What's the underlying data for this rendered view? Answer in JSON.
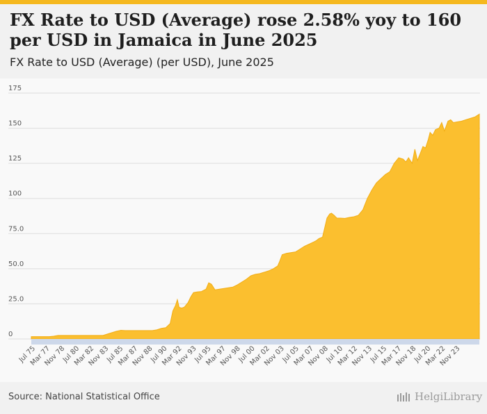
{
  "header": {
    "title": "FX Rate to USD (Average) rose 2.58% yoy to 160 per USD in Jamaica in June 2025",
    "subtitle": "FX Rate to USD (Average) (per USD), June 2025"
  },
  "footer": {
    "source": "Source: National Statistical Office",
    "brand": "HelgiLibrary"
  },
  "colors": {
    "accent": "#f5b81f",
    "area": "#fbbf2f",
    "grid": "#dddddd",
    "axis_text": "#555555"
  },
  "chart_data": {
    "type": "area",
    "title": "FX Rate to USD (Average) (per USD), June 2025",
    "xlabel": "",
    "ylabel": "",
    "ylim": [
      0,
      175
    ],
    "yticks": [
      0,
      25.0,
      50.0,
      75.0,
      100,
      125,
      150,
      175
    ],
    "ytick_labels": [
      "0",
      "25.0",
      "50.0",
      "75.0",
      "100",
      "125",
      "150",
      "175"
    ],
    "xrange": [
      1975.5,
      2025.5
    ],
    "xtick_labels": [
      "Jul 75",
      "Mar 77",
      "Nov 78",
      "Jul 80",
      "Mar 82",
      "Nov 83",
      "Jul 85",
      "Mar 87",
      "Nov 88",
      "Jul 90",
      "Mar 92",
      "Nov 93",
      "Jul 95",
      "Mar 97",
      "Nov 98",
      "Jul 00",
      "Mar 02",
      "Nov 03",
      "Jul 05",
      "Mar 07",
      "Nov 08",
      "Jul 10",
      "Mar 12",
      "Nov 13",
      "Jul 15",
      "Mar 17",
      "Nov 18",
      "Jul 20",
      "Mar 22",
      "Nov 23"
    ],
    "series": [
      {
        "name": "FX Rate to USD (Average)",
        "x": [
          1975.5,
          1977.5,
          1978.0,
          1978.5,
          1983.5,
          1984.0,
          1984.5,
          1985.0,
          1985.5,
          1986.0,
          1989.0,
          1989.5,
          1990.0,
          1990.5,
          1991.0,
          1991.3,
          1991.6,
          1991.8,
          1992.0,
          1992.3,
          1992.6,
          1993.0,
          1993.3,
          1993.6,
          1994.0,
          1994.5,
          1995.0,
          1995.3,
          1995.6,
          1996.0,
          1996.5,
          1997.0,
          1998.0,
          1998.5,
          1999.0,
          1999.5,
          2000.0,
          2000.5,
          2001.0,
          2001.5,
          2002.0,
          2002.5,
          2003.0,
          2003.2,
          2003.5,
          2004.0,
          2004.5,
          2005.0,
          2005.5,
          2006.0,
          2006.5,
          2007.0,
          2007.3,
          2007.6,
          2008.0,
          2008.5,
          2008.8,
          2009.0,
          2009.3,
          2009.6,
          2010.0,
          2010.5,
          2011.0,
          2011.5,
          2012.0,
          2012.5,
          2013.0,
          2013.5,
          2014.0,
          2014.5,
          2015.0,
          2015.5,
          2016.0,
          2016.5,
          2017.0,
          2017.3,
          2017.6,
          2018.0,
          2018.3,
          2018.6,
          2018.9,
          2019.2,
          2019.5,
          2019.8,
          2020.0,
          2020.3,
          2020.6,
          2021.0,
          2021.3,
          2021.6,
          2022.0,
          2022.3,
          2022.6,
          2023.0,
          2023.5,
          2024.0,
          2024.5,
          2025.0,
          2025.5
        ],
        "values": [
          1.7,
          1.7,
          2.0,
          2.5,
          2.5,
          3.5,
          4.5,
          5.5,
          6.2,
          6.0,
          6.0,
          6.5,
          7.5,
          8.0,
          11.0,
          20.0,
          24.0,
          28.0,
          22.5,
          22.0,
          22.8,
          26.0,
          30.0,
          33.0,
          33.5,
          33.8,
          35.5,
          40.0,
          39.0,
          35.0,
          35.5,
          36.0,
          37.0,
          38.5,
          40.5,
          42.5,
          45.0,
          46.0,
          46.5,
          47.5,
          48.5,
          50.0,
          52.0,
          55.0,
          60.0,
          61.0,
          61.5,
          62.0,
          64.0,
          66.0,
          67.5,
          69.0,
          70.0,
          71.5,
          72.5,
          86.0,
          89.0,
          89.5,
          88.0,
          86.0,
          86.0,
          85.8,
          86.5,
          87.0,
          88.0,
          92.0,
          100.0,
          106.0,
          111.0,
          114.0,
          117.0,
          119.0,
          125.0,
          129.0,
          128.0,
          126.0,
          129.0,
          125.0,
          135.0,
          127.0,
          132.0,
          137.0,
          136.0,
          142.0,
          147.0,
          145.0,
          149.0,
          150.0,
          154.0,
          148.0,
          155.0,
          156.0,
          154.0,
          154.5,
          155.0,
          156.0,
          157.0,
          158.0,
          160.0
        ]
      }
    ]
  }
}
